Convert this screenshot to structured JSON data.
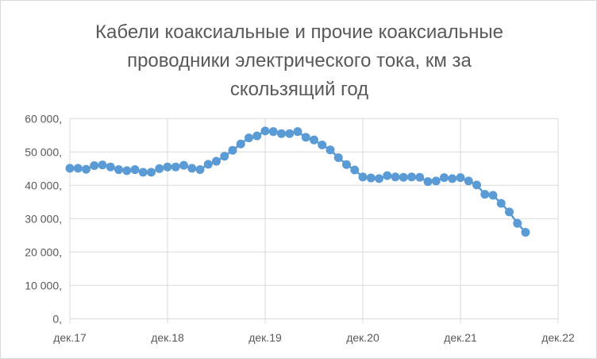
{
  "chart_data": {
    "type": "line",
    "title_lines": [
      "Кабели коаксиальные и прочие коаксиальные",
      "проводники электрического тока, км за",
      "скользящий год"
    ],
    "xlabel": "",
    "ylabel": "",
    "x_tick_labels": [
      "дек.17",
      "дек.18",
      "дек.19",
      "дек.20",
      "дек.21",
      "дек.22"
    ],
    "y_tick_labels": [
      "0,",
      "10 000,",
      "20 000,",
      "30 000,",
      "40 000,",
      "50 000,",
      "60 000,"
    ],
    "ylim": [
      0,
      60000
    ],
    "xlim": [
      "2017-12",
      "2022-12"
    ],
    "grid": true,
    "marker": "circle",
    "color": "#5b9bd5",
    "x_start": "2017-12",
    "x_step": "month",
    "values": [
      45100,
      45100,
      44800,
      45900,
      46100,
      45500,
      44700,
      44400,
      44700,
      43900,
      43900,
      45000,
      45500,
      45500,
      46000,
      45100,
      44700,
      46300,
      47200,
      48700,
      50500,
      52400,
      54200,
      54800,
      56300,
      56100,
      55500,
      55500,
      56100,
      54400,
      53600,
      52100,
      50600,
      48300,
      46200,
      44600,
      42500,
      42200,
      42000,
      42900,
      42500,
      42400,
      42500,
      42400,
      41100,
      41300,
      42300,
      42000,
      42300,
      41300,
      40100,
      37300,
      37000,
      34600,
      32000,
      28600,
      25900
    ]
  }
}
